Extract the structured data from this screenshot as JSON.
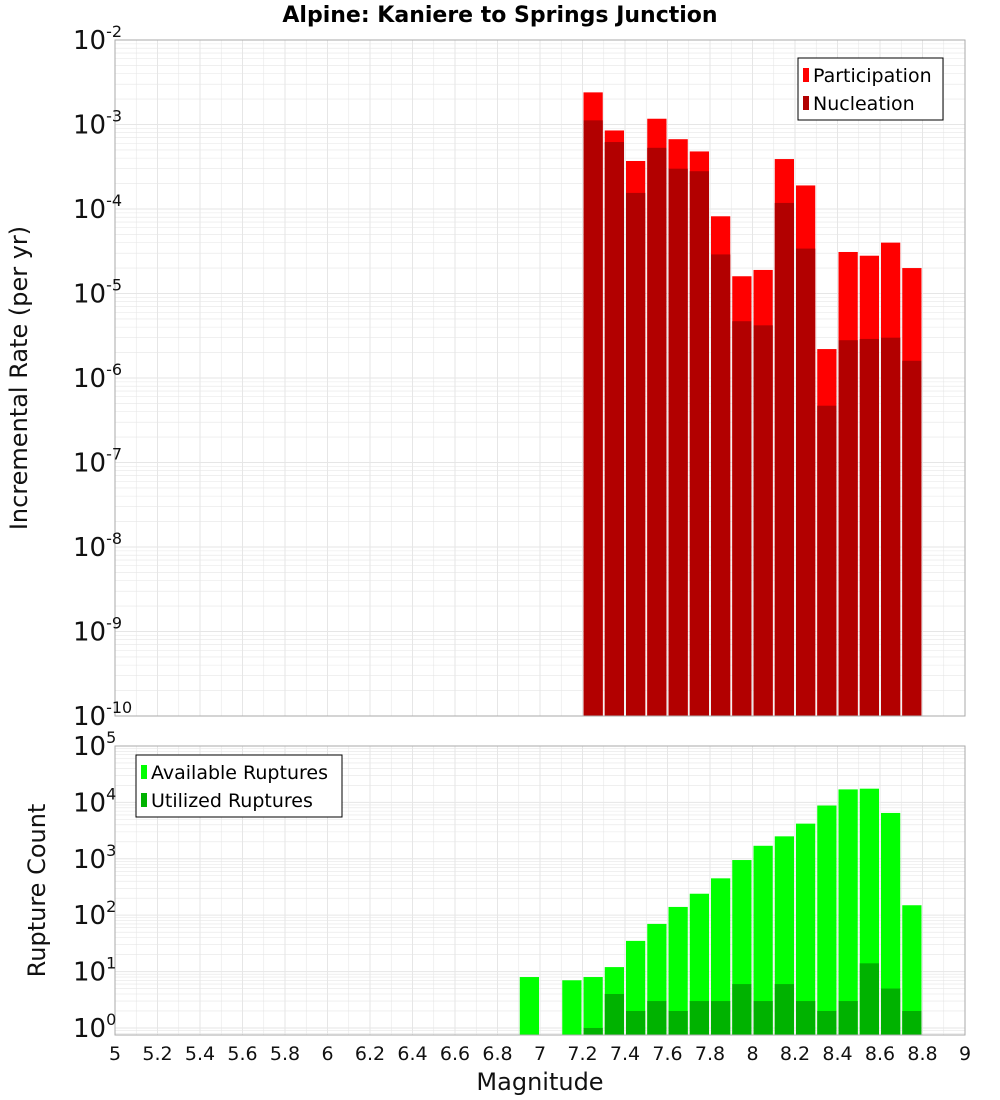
{
  "title": "Alpine: Kaniere to Springs Junction",
  "colors": {
    "participation": "#ff0000",
    "nucleation": "#b20000",
    "available": "#00ff00",
    "utilized": "#00b200",
    "grid": "#e6e6e6",
    "frame": "#aaaaaa"
  },
  "chart_data": [
    {
      "type": "bar",
      "title": "Alpine: Kaniere to Springs Junction",
      "xlabel": "",
      "ylabel": "Incremental Rate (per yr)",
      "yscale": "log",
      "xlim": [
        5,
        9
      ],
      "ylim": [
        1e-10,
        0.01
      ],
      "grid": true,
      "legend_position": "top-right",
      "bin_width": 0.1,
      "bin_centers": [
        7.25,
        7.35,
        7.45,
        7.55,
        7.65,
        7.75,
        7.85,
        7.95,
        8.05,
        8.15,
        8.25,
        8.35,
        8.45,
        8.55,
        8.65,
        8.75
      ],
      "series": [
        {
          "name": "Participation",
          "color": "#ff0000",
          "values": [
            0.0024,
            0.00085,
            0.00037,
            0.00117,
            0.00067,
            0.00048,
            8.2e-05,
            1.6e-05,
            1.9e-05,
            0.00039,
            0.00019,
            2.2e-06,
            3.1e-05,
            2.8e-05,
            4e-05,
            2e-05
          ]
        },
        {
          "name": "Nucleation",
          "color": "#b20000",
          "values": [
            0.00112,
            0.00062,
            0.000155,
            0.00053,
            0.0003,
            0.00028,
            2.9e-05,
            4.7e-06,
            4.2e-06,
            0.000118,
            3.4e-05,
            4.7e-07,
            2.8e-06,
            2.9e-06,
            3e-06,
            1.6e-06
          ]
        }
      ]
    },
    {
      "type": "bar",
      "title": "",
      "xlabel": "Magnitude",
      "ylabel": "Rupture Count",
      "yscale": "log",
      "xlim": [
        5,
        9
      ],
      "ylim": [
        0.75,
        100000
      ],
      "grid": true,
      "legend_position": "top-left",
      "bin_width": 0.1,
      "bin_centers": [
        6.95,
        7.05,
        7.15,
        7.25,
        7.35,
        7.45,
        7.55,
        7.65,
        7.75,
        7.85,
        7.95,
        8.05,
        8.15,
        8.25,
        8.35,
        8.45,
        8.55,
        8.65,
        8.75
      ],
      "series": [
        {
          "name": "Available Ruptures",
          "color": "#00ff00",
          "values": [
            8,
            0,
            7,
            8,
            12,
            35,
            70,
            140,
            240,
            450,
            950,
            1700,
            2500,
            4200,
            8800,
            17000,
            17500,
            6500,
            150
          ]
        },
        {
          "name": "Utilized Ruptures",
          "color": "#00b200",
          "values": [
            0,
            0,
            0,
            1,
            4,
            2,
            3,
            2,
            3,
            3,
            6,
            3,
            6,
            3,
            2,
            3,
            14,
            5,
            2
          ]
        }
      ]
    }
  ],
  "x_ticks": [
    "5",
    "5.2",
    "5.4",
    "5.6",
    "5.8",
    "6",
    "6.2",
    "6.4",
    "6.6",
    "6.8",
    "7",
    "7.2",
    "7.4",
    "7.6",
    "7.8",
    "8",
    "8.2",
    "8.4",
    "8.6",
    "8.8",
    "9"
  ],
  "top_y_exponents": [
    "-2",
    "-3",
    "-4",
    "-5",
    "-6",
    "-7",
    "-8",
    "-9",
    "-10"
  ],
  "bottom_y_exponents": [
    "0",
    "1",
    "2",
    "3",
    "4",
    "5"
  ],
  "tick_base": "10"
}
